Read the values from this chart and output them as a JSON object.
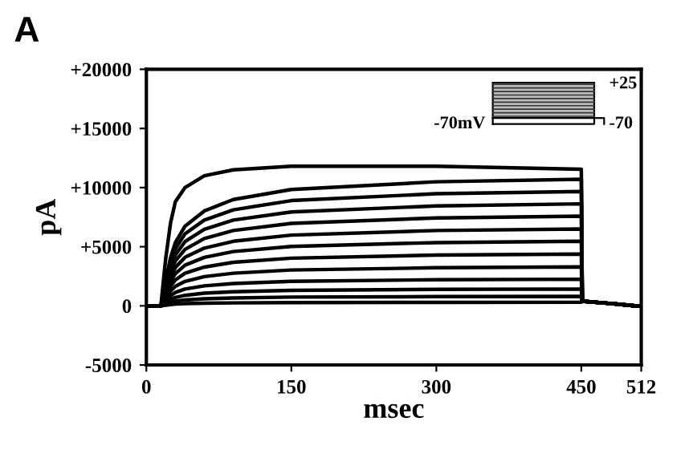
{
  "chart_data": {
    "type": "line",
    "xlabel": "msec",
    "ylabel": "pA",
    "x": [
      0,
      15,
      20,
      25,
      30,
      40,
      60,
      90,
      150,
      300,
      450,
      451,
      480,
      505,
      512
    ],
    "xlim": [
      0,
      512
    ],
    "xticks": [
      0,
      150,
      300,
      450,
      512
    ],
    "ylim": [
      -5000,
      20000
    ],
    "yticks": [
      -5000,
      0,
      {
        "value": 5000,
        "label": "+5000"
      },
      {
        "value": 10000,
        "label": "+10000"
      },
      {
        "value": 15000,
        "label": "+15000"
      },
      {
        "value": 20000,
        "label": "+20000"
      }
    ],
    "grid": false,
    "legend": false,
    "marker": "none",
    "line_style": "solid",
    "annotations": [
      "A",
      "+25",
      "-70mV",
      "-70"
    ],
    "series": [
      {
        "color": "#000000",
        "values": [
          0,
          0,
          4000,
          7000,
          8800,
          10000,
          11000,
          11500,
          11800,
          11800,
          11550,
          400,
          200,
          0,
          0
        ]
      },
      {
        "color": "#000000",
        "values": [
          0,
          0,
          2140,
          4070,
          5350,
          6740,
          8030,
          8990,
          9840,
          10490,
          10700,
          400,
          200,
          0,
          0
        ]
      },
      {
        "color": "#000000",
        "values": [
          0,
          0,
          1930,
          3670,
          4840,
          6090,
          7250,
          8120,
          8900,
          9480,
          9670,
          400,
          200,
          0,
          0
        ]
      },
      {
        "color": "#000000",
        "values": [
          0,
          0,
          1730,
          3280,
          4310,
          5430,
          6470,
          7250,
          7940,
          8450,
          8625,
          400,
          200,
          0,
          0
        ]
      },
      {
        "color": "#000000",
        "values": [
          0,
          0,
          1520,
          2880,
          3790,
          4780,
          5690,
          6370,
          6970,
          7430,
          7580,
          400,
          200,
          0,
          0
        ]
      },
      {
        "color": "#000000",
        "values": [
          0,
          0,
          1300,
          2470,
          3250,
          4100,
          4880,
          5460,
          5980,
          6370,
          6500,
          400,
          200,
          0,
          0
        ]
      },
      {
        "color": "#000000",
        "values": [
          0,
          0,
          1090,
          2070,
          2730,
          3440,
          4100,
          4590,
          5020,
          5350,
          5460,
          400,
          200,
          0,
          0
        ]
      },
      {
        "color": "#000000",
        "values": [
          0,
          0,
          880,
          1660,
          2190,
          2760,
          3280,
          3680,
          4030,
          4290,
          4375,
          400,
          200,
          0,
          0
        ]
      },
      {
        "color": "#000000",
        "values": [
          0,
          0,
          660,
          1250,
          1650,
          2070,
          2470,
          2760,
          3030,
          3220,
          3290,
          400,
          200,
          0,
          0
        ]
      },
      {
        "color": "#000000",
        "values": [
          0,
          0,
          450,
          860,
          1130,
          1420,
          1690,
          1890,
          2070,
          2210,
          2250,
          400,
          200,
          0,
          0
        ]
      },
      {
        "color": "#000000",
        "values": [
          0,
          0,
          280,
          540,
          710,
          890,
          1070,
          1190,
          1310,
          1390,
          1420,
          400,
          200,
          0,
          0
        ]
      },
      {
        "color": "#000000",
        "values": [
          0,
          0,
          160,
          300,
          400,
          500,
          600,
          670,
          740,
          780,
          800,
          400,
          200,
          0,
          0
        ]
      },
      {
        "color": "#000000",
        "values": [
          0,
          0,
          60,
          110,
          150,
          190,
          230,
          250,
          280,
          290,
          300,
          400,
          200,
          0,
          0
        ]
      }
    ]
  }
}
